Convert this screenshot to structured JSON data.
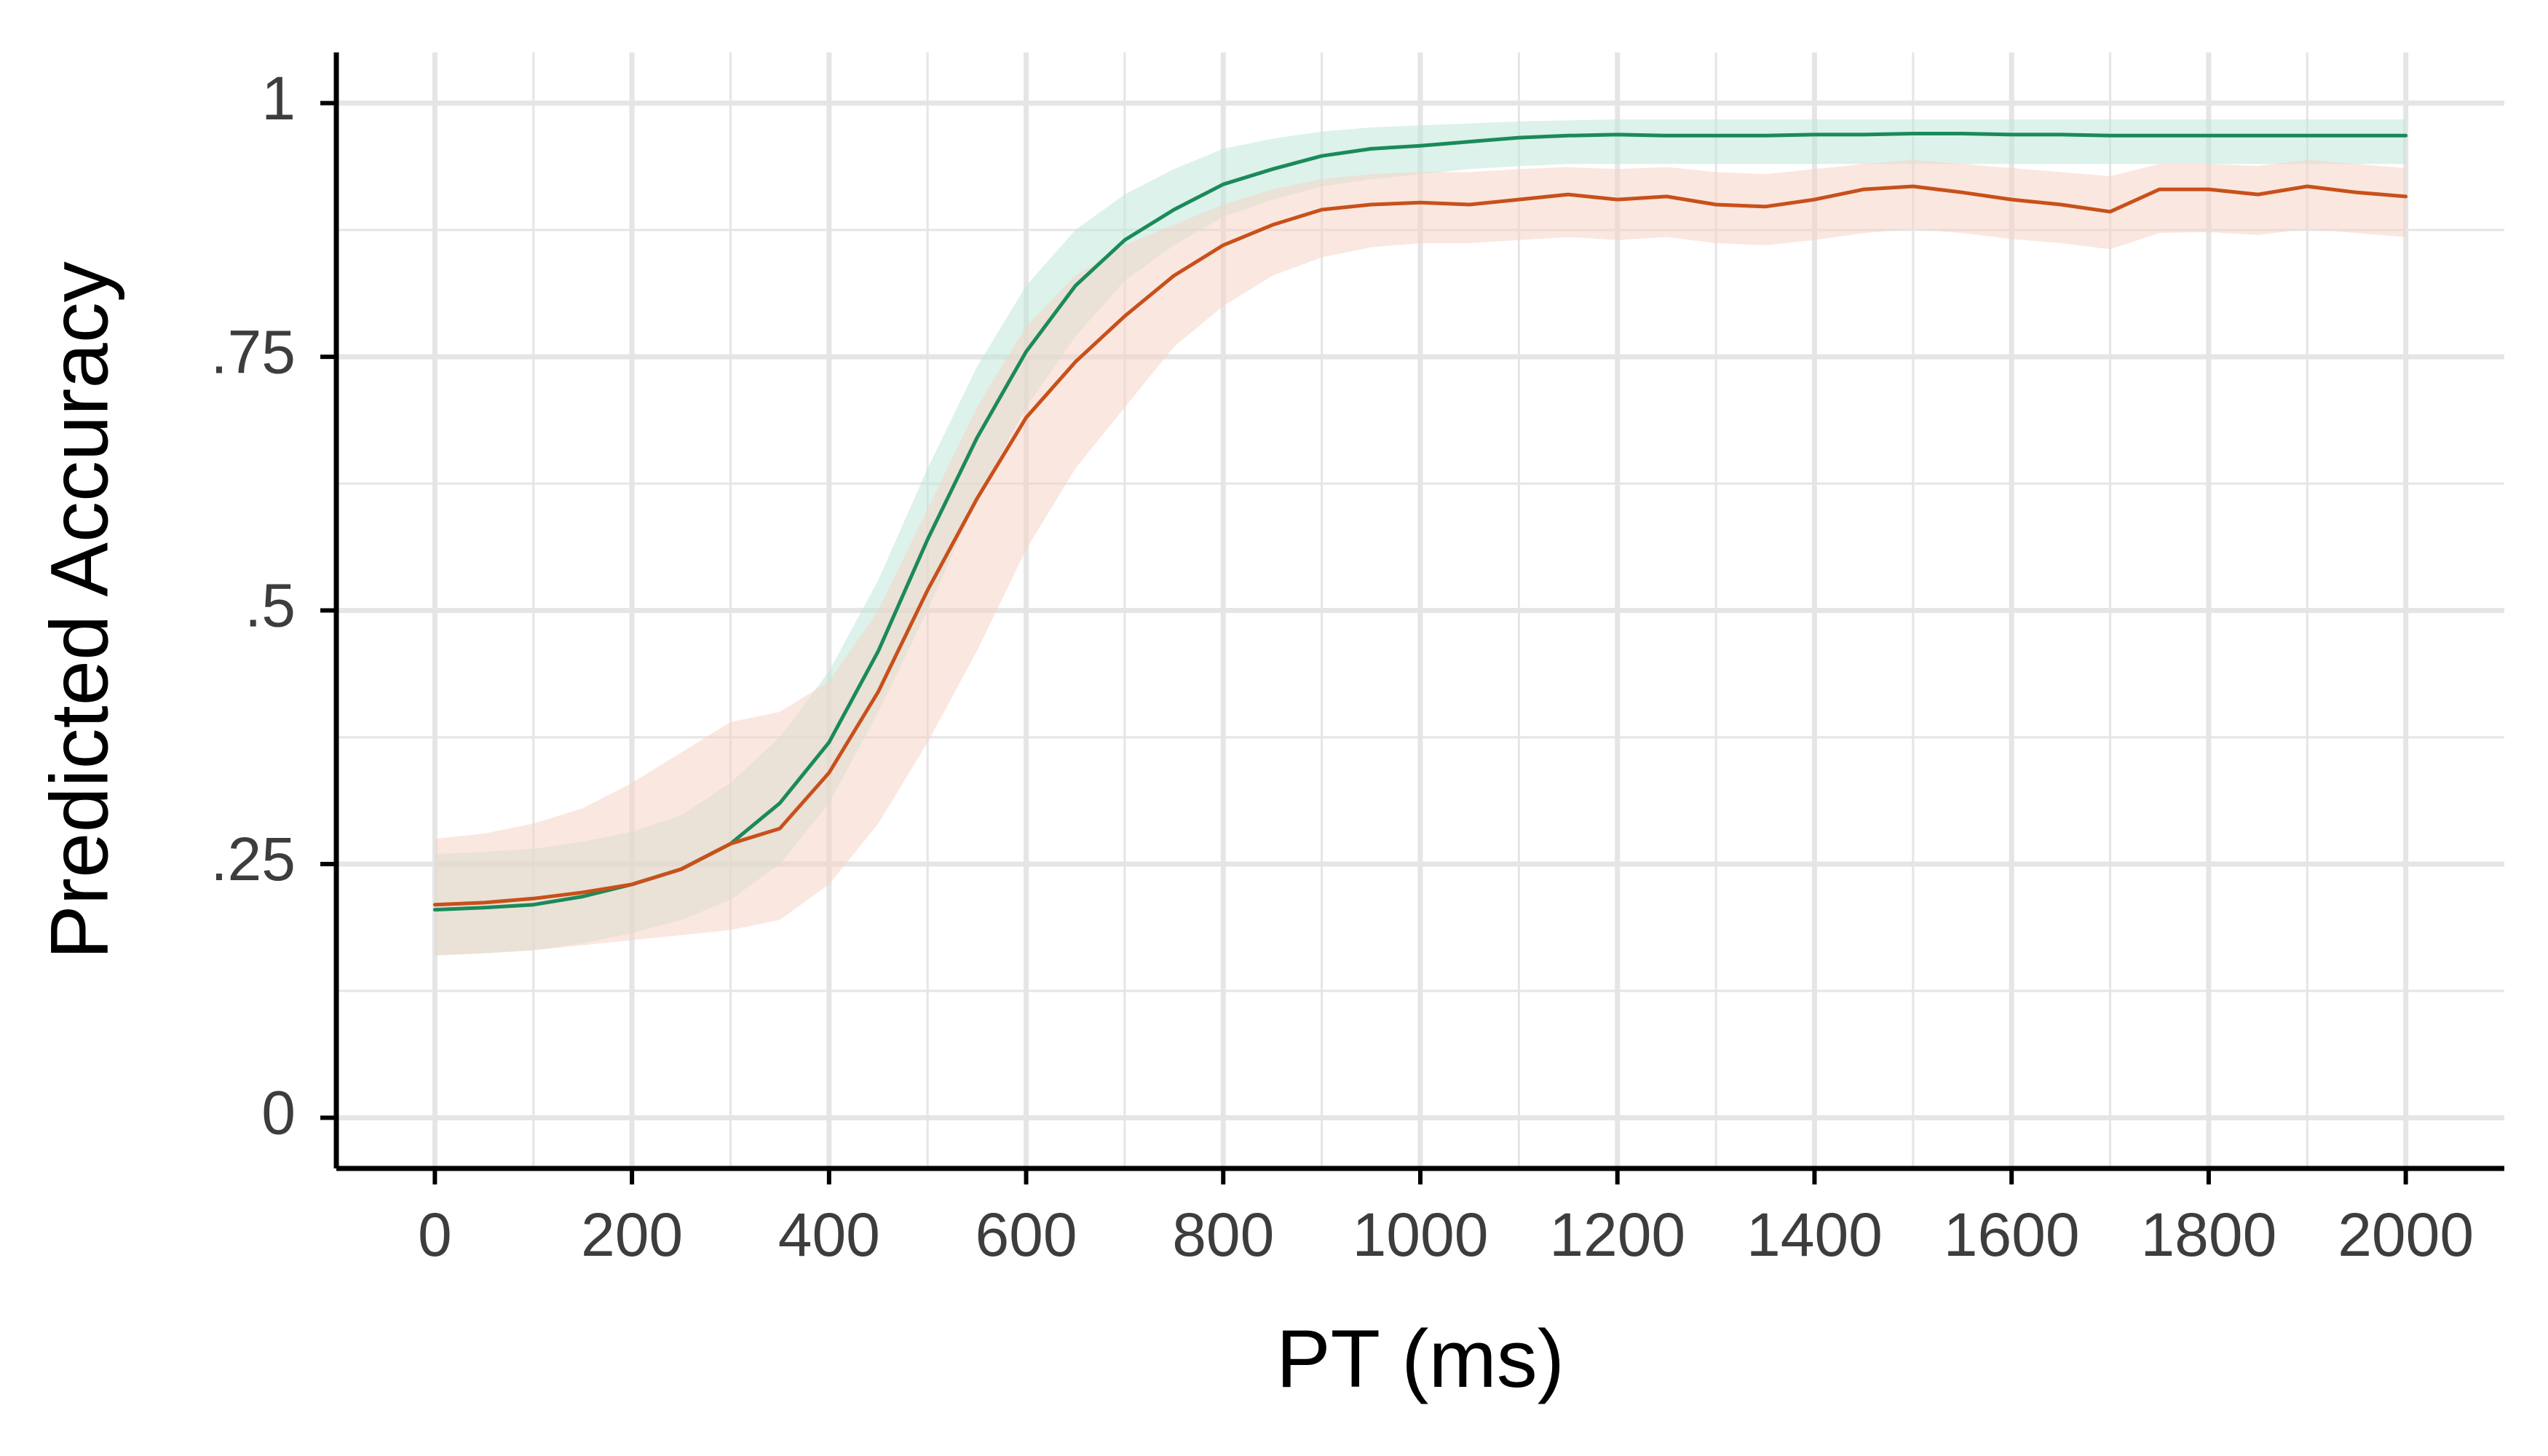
{
  "chart_data": {
    "type": "line",
    "title": "",
    "xlabel": "PT (ms)",
    "ylabel": "Predicted Accuracy",
    "xlim": [
      -100,
      2100
    ],
    "ylim": [
      -0.05,
      1.05
    ],
    "x_ticks": [
      0,
      200,
      400,
      600,
      800,
      1000,
      1200,
      1400,
      1600,
      1800,
      2000
    ],
    "x_tick_labels": [
      "0",
      "200",
      "400",
      "600",
      "800",
      "1000",
      "1200",
      "1400",
      "1600",
      "1800",
      "2000"
    ],
    "x_minor_ticks": [
      100,
      300,
      500,
      700,
      900,
      1100,
      1300,
      1500,
      1700,
      1900
    ],
    "y_ticks": [
      0,
      0.25,
      0.5,
      0.75,
      1
    ],
    "y_tick_labels": [
      "0",
      ".25",
      ".5",
      ".75",
      "1"
    ],
    "y_minor_ticks": [
      0.125,
      0.375,
      0.625,
      0.875
    ],
    "grid": true,
    "legend": "none",
    "colors": {
      "green": "#1b8a5a",
      "orange": "#c8501a",
      "green_band": "#bfe8d8",
      "orange_band": "#f6d3c6",
      "grid": "#e5e5e5",
      "axis": "#000000",
      "tick_label": "#3d3d3d"
    },
    "series": [
      {
        "color": "#1b8a5a",
        "x": [
          0,
          50,
          100,
          150,
          200,
          250,
          300,
          350,
          400,
          450,
          500,
          550,
          600,
          650,
          700,
          750,
          800,
          850,
          900,
          950,
          1000,
          1050,
          1100,
          1150,
          1200,
          1250,
          1300,
          1350,
          1400,
          1450,
          1500,
          1550,
          1600,
          1650,
          1700,
          1750,
          1800,
          1850,
          1900,
          1950,
          2000
        ],
        "y": [
          0.205,
          0.207,
          0.21,
          0.218,
          0.23,
          0.245,
          0.27,
          0.31,
          0.37,
          0.46,
          0.57,
          0.67,
          0.755,
          0.82,
          0.865,
          0.895,
          0.92,
          0.935,
          0.948,
          0.955,
          0.958,
          0.962,
          0.966,
          0.968,
          0.969,
          0.968,
          0.968,
          0.968,
          0.969,
          0.969,
          0.97,
          0.97,
          0.969,
          0.969,
          0.968,
          0.968,
          0.968,
          0.968,
          0.968,
          0.968,
          0.968
        ],
        "lower": [
          0.16,
          0.162,
          0.165,
          0.172,
          0.182,
          0.195,
          0.215,
          0.25,
          0.31,
          0.4,
          0.5,
          0.61,
          0.7,
          0.77,
          0.825,
          0.86,
          0.888,
          0.905,
          0.918,
          0.925,
          0.93,
          0.935,
          0.938,
          0.94,
          0.94,
          0.94,
          0.94,
          0.94,
          0.94,
          0.94,
          0.94,
          0.94,
          0.94,
          0.94,
          0.94,
          0.94,
          0.94,
          0.94,
          0.94,
          0.94,
          0.94
        ],
        "upper": [
          0.26,
          0.262,
          0.265,
          0.272,
          0.282,
          0.298,
          0.33,
          0.375,
          0.44,
          0.53,
          0.64,
          0.74,
          0.82,
          0.875,
          0.91,
          0.935,
          0.955,
          0.965,
          0.972,
          0.976,
          0.978,
          0.98,
          0.982,
          0.983,
          0.984,
          0.984,
          0.984,
          0.984,
          0.984,
          0.984,
          0.984,
          0.984,
          0.984,
          0.984,
          0.984,
          0.984,
          0.984,
          0.984,
          0.984,
          0.984,
          0.984
        ]
      },
      {
        "color": "#c8501a",
        "x": [
          0,
          50,
          100,
          150,
          200,
          250,
          300,
          350,
          400,
          450,
          500,
          550,
          600,
          650,
          700,
          750,
          800,
          850,
          900,
          950,
          1000,
          1050,
          1100,
          1150,
          1200,
          1250,
          1300,
          1350,
          1400,
          1450,
          1500,
          1550,
          1600,
          1650,
          1700,
          1750,
          1800,
          1850,
          1900,
          1950,
          2000
        ],
        "y": [
          0.21,
          0.212,
          0.216,
          0.222,
          0.23,
          0.245,
          0.27,
          0.285,
          0.34,
          0.42,
          0.52,
          0.61,
          0.69,
          0.745,
          0.79,
          0.83,
          0.86,
          0.88,
          0.895,
          0.9,
          0.902,
          0.9,
          0.905,
          0.91,
          0.905,
          0.908,
          0.9,
          0.898,
          0.905,
          0.915,
          0.918,
          0.912,
          0.905,
          0.9,
          0.893,
          0.915,
          0.915,
          0.91,
          0.918,
          0.912,
          0.908
        ],
        "lower": [
          0.16,
          0.162,
          0.165,
          0.17,
          0.175,
          0.18,
          0.185,
          0.195,
          0.23,
          0.29,
          0.37,
          0.46,
          0.56,
          0.64,
          0.7,
          0.76,
          0.8,
          0.83,
          0.848,
          0.858,
          0.862,
          0.862,
          0.865,
          0.868,
          0.865,
          0.868,
          0.862,
          0.86,
          0.865,
          0.872,
          0.876,
          0.872,
          0.866,
          0.862,
          0.856,
          0.872,
          0.873,
          0.87,
          0.876,
          0.872,
          0.868
        ],
        "upper": [
          0.275,
          0.28,
          0.29,
          0.305,
          0.33,
          0.36,
          0.39,
          0.4,
          0.43,
          0.5,
          0.6,
          0.7,
          0.78,
          0.83,
          0.86,
          0.88,
          0.9,
          0.915,
          0.925,
          0.93,
          0.932,
          0.932,
          0.935,
          0.937,
          0.935,
          0.937,
          0.932,
          0.93,
          0.935,
          0.94,
          0.944,
          0.94,
          0.936,
          0.932,
          0.928,
          0.94,
          0.94,
          0.938,
          0.944,
          0.94,
          0.936
        ]
      }
    ]
  }
}
